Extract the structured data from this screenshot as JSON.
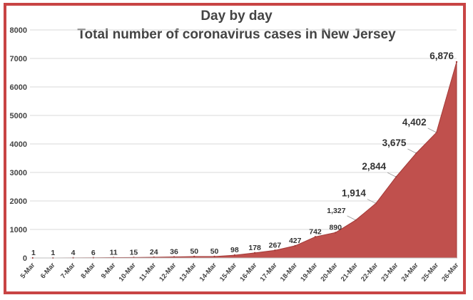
{
  "chart_data": {
    "type": "area",
    "title": "Day by day",
    "subtitle": "Total number of coronavirus cases in New Jersey",
    "xlabel": "",
    "ylabel": "",
    "ylim": [
      0,
      8000
    ],
    "yticks": [
      0,
      1000,
      2000,
      3000,
      4000,
      5000,
      6000,
      7000,
      8000
    ],
    "grid": true,
    "legend": "none",
    "color": "#c0504d",
    "categories": [
      "5-Mar",
      "6-Mar",
      "7-Mar",
      "8-Mar",
      "9-Mar",
      "10-Mar",
      "11-Mar",
      "12-Mar",
      "13-Mar",
      "14-Mar",
      "15-Mar",
      "16-Mar",
      "17-Mar",
      "18-Mar",
      "19-Mar",
      "20-Mar",
      "21-Mar",
      "22-Mar",
      "23-Mar",
      "24-Mar",
      "25-Mar",
      "26-Mar"
    ],
    "values": [
      1,
      1,
      4,
      6,
      11,
      15,
      24,
      36,
      50,
      50,
      98,
      178,
      267,
      427,
      742,
      890,
      1327,
      1914,
      2844,
      3675,
      4402,
      6876
    ],
    "data_labels": [
      "1",
      "1",
      "4",
      "6",
      "11",
      "15",
      "24",
      "36",
      "50",
      "50",
      "98",
      "178",
      "267",
      "427",
      "742",
      "890",
      "1,327",
      "1,914",
      "2,844",
      "3,675",
      "4,402",
      "6,876"
    ]
  }
}
